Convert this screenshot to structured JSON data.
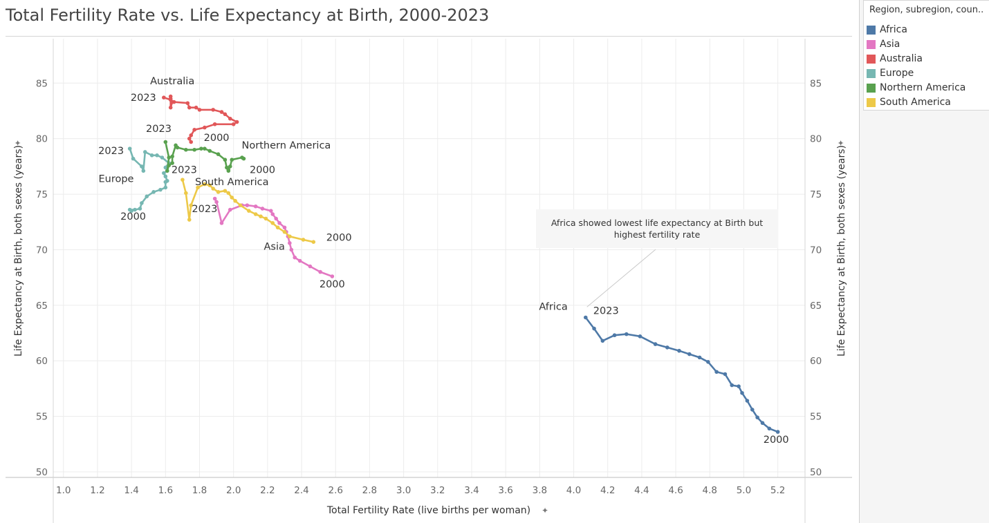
{
  "title": "Total Fertility Rate vs. Life Expectancy at Birth, 2000-2023",
  "legend": {
    "title": "Region, subregion, coun..",
    "items": [
      {
        "name": "Africa",
        "color": "#4e79a7"
      },
      {
        "name": "Asia",
        "color": "#e377c2"
      },
      {
        "name": "Australia",
        "color": "#e15759"
      },
      {
        "name": "Europe",
        "color": "#76b7b2"
      },
      {
        "name": "Northern America",
        "color": "#59a14f"
      },
      {
        "name": "South America",
        "color": "#edc948"
      }
    ]
  },
  "chart_data": {
    "type": "line",
    "title": "Total Fertility Rate vs. Life Expectancy at Birth, 2000-2023",
    "xlabel": "Total Fertility Rate (live births per woman)",
    "ylabel": "Life Expectancy at Birth, both sexes (years)",
    "xlim": [
      0.94,
      5.36
    ],
    "ylim": [
      49.5,
      89
    ],
    "xticks": [
      "1.0",
      "1.2",
      "1.4",
      "1.6",
      "1.8",
      "2.0",
      "2.2",
      "2.4",
      "2.6",
      "2.8",
      "3.0",
      "3.2",
      "3.4",
      "3.6",
      "3.8",
      "4.0",
      "4.2",
      "4.4",
      "4.6",
      "4.8",
      "5.0",
      "5.2"
    ],
    "yticks": [
      "50",
      "55",
      "60",
      "65",
      "70",
      "75",
      "80",
      "85"
    ],
    "grid": true,
    "legend_position": "right",
    "series": [
      {
        "name": "Africa",
        "color": "#4e79a7",
        "points": [
          [
            5.2,
            53.6
          ],
          [
            5.15,
            53.9
          ],
          [
            5.11,
            54.4
          ],
          [
            5.08,
            54.9
          ],
          [
            5.05,
            55.6
          ],
          [
            5.02,
            56.4
          ],
          [
            4.99,
            57.1
          ],
          [
            4.97,
            57.7
          ],
          [
            4.93,
            57.8
          ],
          [
            4.89,
            58.8
          ],
          [
            4.84,
            59.0
          ],
          [
            4.79,
            59.9
          ],
          [
            4.74,
            60.3
          ],
          [
            4.68,
            60.6
          ],
          [
            4.62,
            60.9
          ],
          [
            4.55,
            61.2
          ],
          [
            4.48,
            61.5
          ],
          [
            4.39,
            62.2
          ],
          [
            4.31,
            62.4
          ],
          [
            4.24,
            62.3
          ],
          [
            4.17,
            61.8
          ],
          [
            4.12,
            62.9
          ],
          [
            4.07,
            63.9
          ]
        ],
        "labels": [
          {
            "text": "Africa",
            "x": 3.88,
            "y": 64.6
          },
          {
            "text": "2023",
            "x": 4.19,
            "y": 64.2
          },
          {
            "text": "2000",
            "x": 5.19,
            "y": 52.6
          }
        ]
      },
      {
        "name": "Asia",
        "color": "#e377c2",
        "points": [
          [
            2.58,
            67.6
          ],
          [
            2.51,
            68.0
          ],
          [
            2.45,
            68.5
          ],
          [
            2.39,
            69.0
          ],
          [
            2.36,
            69.3
          ],
          [
            2.34,
            70.0
          ],
          [
            2.33,
            70.6
          ],
          [
            2.32,
            71.2
          ],
          [
            2.31,
            71.6
          ],
          [
            2.3,
            72.0
          ],
          [
            2.27,
            72.4
          ],
          [
            2.25,
            72.8
          ],
          [
            2.23,
            73.2
          ],
          [
            2.22,
            73.5
          ],
          [
            2.17,
            73.7
          ],
          [
            2.13,
            73.9
          ],
          [
            2.08,
            74.0
          ],
          [
            2.05,
            74.0
          ],
          [
            1.98,
            73.6
          ],
          [
            1.93,
            72.4
          ],
          [
            1.9,
            74.3
          ],
          [
            1.89,
            74.6
          ]
        ],
        "labels": [
          {
            "text": "Asia",
            "x": 2.24,
            "y": 70.0
          },
          {
            "text": "2000",
            "x": 2.58,
            "y": 66.6
          }
        ]
      },
      {
        "name": "Australia",
        "color": "#e15759",
        "points": [
          [
            1.75,
            79.7
          ],
          [
            1.74,
            80.0
          ],
          [
            1.75,
            80.3
          ],
          [
            1.77,
            80.8
          ],
          [
            1.83,
            81.0
          ],
          [
            1.89,
            81.3
          ],
          [
            2.0,
            81.3
          ],
          [
            2.02,
            81.5
          ],
          [
            1.98,
            81.8
          ],
          [
            1.95,
            82.2
          ],
          [
            1.93,
            82.4
          ],
          [
            1.88,
            82.6
          ],
          [
            1.8,
            82.6
          ],
          [
            1.78,
            82.8
          ],
          [
            1.74,
            82.8
          ],
          [
            1.73,
            83.2
          ],
          [
            1.65,
            83.3
          ],
          [
            1.64,
            83.3
          ],
          [
            1.63,
            82.8
          ],
          [
            1.63,
            83.6
          ],
          [
            1.63,
            83.8
          ],
          [
            1.63,
            83.5
          ],
          [
            1.59,
            83.7
          ]
        ],
        "labels": [
          {
            "text": "Australia",
            "x": 1.64,
            "y": 84.9
          },
          {
            "text": "2023",
            "x": 1.47,
            "y": 83.4
          },
          {
            "text": "2000",
            "x": 1.9,
            "y": 79.8
          }
        ]
      },
      {
        "name": "Europe",
        "color": "#76b7b2",
        "points": [
          [
            1.4,
            73.5
          ],
          [
            1.39,
            73.6
          ],
          [
            1.42,
            73.6
          ],
          [
            1.45,
            73.7
          ],
          [
            1.46,
            74.2
          ],
          [
            1.49,
            74.8
          ],
          [
            1.53,
            75.2
          ],
          [
            1.57,
            75.4
          ],
          [
            1.6,
            75.6
          ],
          [
            1.6,
            76.1
          ],
          [
            1.61,
            76.2
          ],
          [
            1.6,
            76.6
          ],
          [
            1.59,
            76.9
          ],
          [
            1.61,
            77.1
          ],
          [
            1.6,
            77.4
          ],
          [
            1.62,
            77.8
          ],
          [
            1.58,
            78.3
          ],
          [
            1.55,
            78.5
          ],
          [
            1.52,
            78.5
          ],
          [
            1.48,
            78.8
          ],
          [
            1.47,
            77.1
          ],
          [
            1.46,
            77.5
          ],
          [
            1.41,
            78.2
          ],
          [
            1.39,
            79.1
          ]
        ],
        "labels": [
          {
            "text": "2023",
            "x": 1.28,
            "y": 78.6
          },
          {
            "text": "Europe",
            "x": 1.31,
            "y": 76.1
          },
          {
            "text": "2000",
            "x": 1.41,
            "y": 72.7
          }
        ]
      },
      {
        "name": "Northern America",
        "color": "#59a14f",
        "points": [
          [
            2.06,
            78.2
          ],
          [
            2.05,
            78.3
          ],
          [
            1.99,
            78.1
          ],
          [
            1.98,
            77.5
          ],
          [
            1.97,
            77.2
          ],
          [
            1.97,
            77.1
          ],
          [
            1.96,
            77.4
          ],
          [
            1.95,
            78.1
          ],
          [
            1.91,
            78.6
          ],
          [
            1.86,
            78.9
          ],
          [
            1.83,
            79.1
          ],
          [
            1.81,
            79.1
          ],
          [
            1.77,
            79.0
          ],
          [
            1.72,
            79.0
          ],
          [
            1.67,
            79.2
          ],
          [
            1.66,
            79.4
          ],
          [
            1.64,
            78.4
          ],
          [
            1.64,
            77.8
          ],
          [
            1.62,
            77.6
          ],
          [
            1.61,
            77.1
          ],
          [
            1.62,
            78.3
          ],
          [
            1.6,
            79.7
          ]
        ],
        "labels": [
          {
            "text": "Northern America",
            "x": 2.31,
            "y": 79.1
          },
          {
            "text": "2000",
            "x": 2.17,
            "y": 76.9
          },
          {
            "text": "2023",
            "x": 1.56,
            "y": 80.6
          },
          {
            "text": "2023",
            "x": 1.71,
            "y": 76.9
          }
        ]
      },
      {
        "name": "South America",
        "color": "#edc948",
        "points": [
          [
            2.47,
            70.7
          ],
          [
            2.41,
            70.9
          ],
          [
            2.33,
            71.2
          ],
          [
            2.3,
            71.6
          ],
          [
            2.26,
            72.0
          ],
          [
            2.23,
            72.4
          ],
          [
            2.19,
            72.8
          ],
          [
            2.16,
            73.0
          ],
          [
            2.13,
            73.2
          ],
          [
            2.09,
            73.5
          ],
          [
            2.04,
            74.0
          ],
          [
            2.01,
            74.4
          ],
          [
            1.99,
            74.7
          ],
          [
            1.97,
            75.1
          ],
          [
            1.95,
            75.3
          ],
          [
            1.91,
            75.2
          ],
          [
            1.88,
            75.5
          ],
          [
            1.86,
            75.8
          ],
          [
            1.83,
            75.9
          ],
          [
            1.79,
            75.6
          ],
          [
            1.75,
            74.0
          ],
          [
            1.74,
            72.7
          ],
          [
            1.72,
            75.1
          ],
          [
            1.7,
            76.3
          ]
        ],
        "labels": [
          {
            "text": "South America",
            "x": 1.99,
            "y": 75.8
          },
          {
            "text": "2023",
            "x": 1.83,
            "y": 73.4
          },
          {
            "text": "2000",
            "x": 2.62,
            "y": 70.8
          }
        ]
      }
    ],
    "annotation": {
      "text_line1": "Africa showed lowest life expectancy at Birth but",
      "text_line2": "highest fertility rate",
      "anchor": [
        4.07,
        64.6
      ]
    }
  }
}
